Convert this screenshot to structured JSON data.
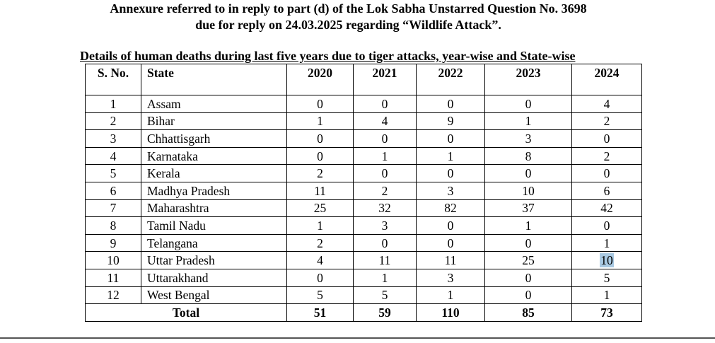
{
  "title_line1": "Annexure referred to in reply to part (d) of the Lok Sabha Unstarred Question No. 3698",
  "title_line2": "due for reply on 24.03.2025 regarding “Wildlife Attack”.",
  "subtitle": "Details of human deaths during last five years due to tiger attacks, year-wise and State-wise",
  "table": {
    "headers": [
      "S. No.",
      "State",
      "2020",
      "2021",
      "2022",
      "2023",
      "2024"
    ],
    "rows": [
      [
        "1",
        "Assam",
        "0",
        "0",
        "0",
        "0",
        "4"
      ],
      [
        "2",
        "Bihar",
        "1",
        "4",
        "9",
        "1",
        "2"
      ],
      [
        "3",
        "Chhattisgarh",
        "0",
        "0",
        "0",
        "3",
        "0"
      ],
      [
        "4",
        "Karnataka",
        "0",
        "1",
        "1",
        "8",
        "2"
      ],
      [
        "5",
        "Kerala",
        "2",
        "0",
        "0",
        "0",
        "0"
      ],
      [
        "6",
        "Madhya Pradesh",
        "11",
        "2",
        "3",
        "10",
        "6"
      ],
      [
        "7",
        "Maharashtra",
        "25",
        "32",
        "82",
        "37",
        "42"
      ],
      [
        "8",
        "Tamil Nadu",
        "1",
        "3",
        "0",
        "1",
        "0"
      ],
      [
        "9",
        "Telangana",
        "2",
        "0",
        "0",
        "0",
        "1"
      ],
      [
        "10",
        "Uttar Pradesh",
        "4",
        "11",
        "11",
        "25",
        "10"
      ],
      [
        "11",
        "Uttarakhand",
        "0",
        "1",
        "3",
        "0",
        "5"
      ],
      [
        "12",
        "West Bengal",
        "5",
        "5",
        "1",
        "0",
        "1"
      ]
    ],
    "total": [
      "Total",
      "51",
      "59",
      "110",
      "85",
      "73"
    ]
  },
  "selection_color": "#a9c9e2"
}
